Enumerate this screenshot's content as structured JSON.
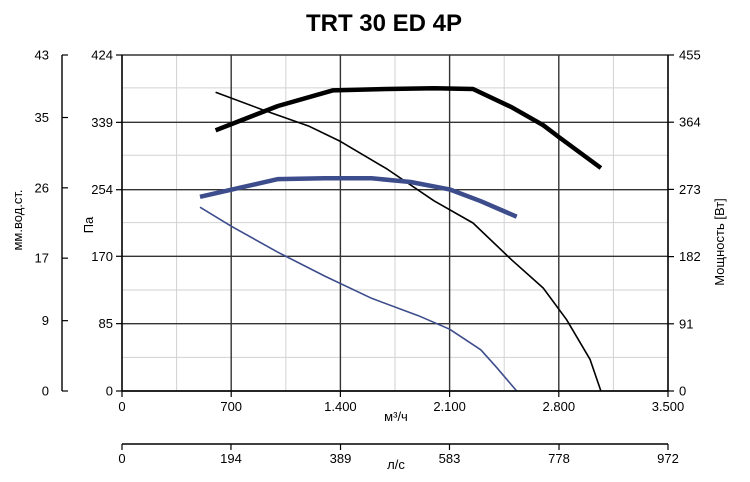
{
  "chart_data": {
    "type": "line",
    "title": "TRT 30 ED 4P",
    "x_axis": {
      "label": "м³/ч",
      "range": [
        0,
        3500
      ],
      "ticks": [
        0,
        700,
        1400,
        2100,
        2800,
        3500
      ],
      "tick_labels": [
        "0",
        "700",
        "1.400",
        "2.100",
        "2.800",
        "3.500"
      ]
    },
    "x2_axis": {
      "label": "л/с",
      "range": [
        0,
        972
      ],
      "ticks": [
        0,
        194,
        389,
        583,
        778,
        972
      ],
      "tick_labels": [
        "0",
        "194",
        "389",
        "583",
        "778",
        "972"
      ]
    },
    "y_axis_pa": {
      "label": "Па",
      "range": [
        0,
        424
      ],
      "ticks": [
        0,
        85,
        170,
        254,
        339,
        424
      ],
      "tick_labels": [
        "0",
        "85",
        "170",
        "254",
        "339",
        "424"
      ]
    },
    "y_axis_mm": {
      "label": "мм.вод.ст.",
      "range": [
        0,
        43
      ],
      "ticks": [
        0,
        9,
        17,
        26,
        35,
        43
      ],
      "tick_labels": [
        "0",
        "9",
        "17",
        "26",
        "35",
        "43"
      ]
    },
    "y_axis_power": {
      "label": "Мощность [Вт]",
      "range": [
        0,
        455
      ],
      "ticks": [
        0,
        91,
        182,
        273,
        364,
        455
      ],
      "tick_labels": [
        "0",
        "91",
        "182",
        "273",
        "364",
        "455"
      ]
    },
    "grid": true,
    "series": [
      {
        "axis": "power",
        "color": "#000000",
        "weight": "thick",
        "x": [
          600,
          1000,
          1350,
          1700,
          2000,
          2250,
          2500,
          2700,
          2800,
          3070
        ],
        "y": [
          353,
          386,
          407,
          409,
          410,
          409,
          384,
          360,
          344,
          302
        ]
      },
      {
        "axis": "pressure",
        "color": "#000000",
        "weight": "thin",
        "x": [
          600,
          900,
          1200,
          1400,
          1700,
          2000,
          2250,
          2500,
          2700,
          2850,
          3000,
          3070
        ],
        "y": [
          377,
          355,
          334,
          315,
          280,
          240,
          212,
          165,
          130,
          90,
          40,
          0
        ]
      },
      {
        "axis": "power",
        "color": "#3d4d8c",
        "weight": "thick",
        "x": [
          500,
          750,
          1000,
          1300,
          1600,
          1850,
          2100,
          2300,
          2530
        ],
        "y": [
          263,
          275,
          287,
          288,
          288,
          283,
          273,
          257,
          236
        ]
      },
      {
        "axis": "pressure",
        "color": "#3d4d8c",
        "weight": "thin",
        "x": [
          500,
          700,
          1000,
          1300,
          1600,
          1900,
          2100,
          2300,
          2400,
          2530
        ],
        "y": [
          232,
          208,
          175,
          145,
          117,
          95,
          78,
          52,
          30,
          0
        ]
      }
    ]
  }
}
